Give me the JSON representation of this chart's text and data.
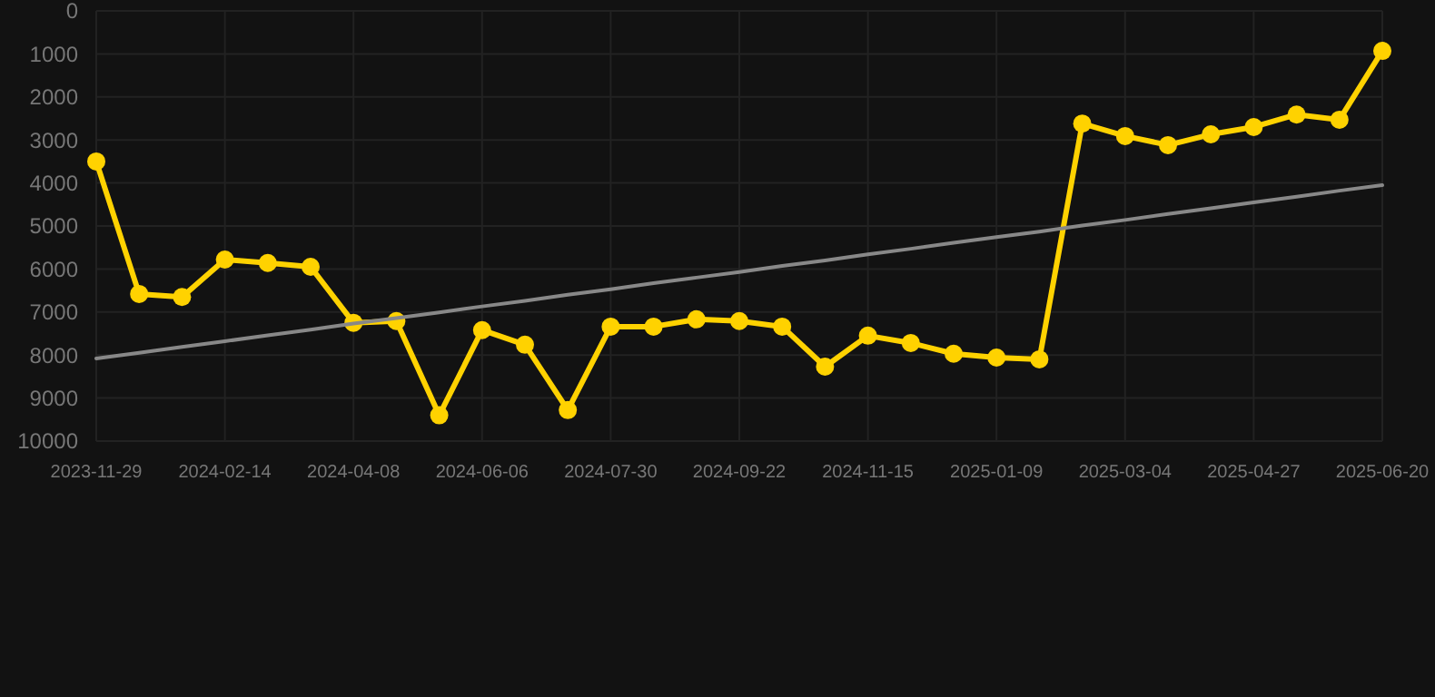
{
  "chart_data": {
    "type": "line",
    "categories": [
      "2023-11-29",
      null,
      null,
      "2024-02-14",
      null,
      null,
      "2024-04-08",
      null,
      null,
      "2024-06-06",
      null,
      null,
      "2024-07-30",
      null,
      null,
      "2024-09-22",
      null,
      null,
      "2024-11-15",
      null,
      null,
      "2025-01-09",
      null,
      null,
      "2025-03-04",
      null,
      null,
      "2025-04-27",
      null,
      null,
      "2025-06-20"
    ],
    "ylim": [
      10000,
      0
    ],
    "yticks": [
      0,
      1000,
      2000,
      3000,
      4000,
      5000,
      6000,
      7000,
      8000,
      9000,
      10000
    ],
    "grid": true,
    "marker": "circle",
    "line_style": "solid",
    "series": [
      {
        "color": "#ffd200",
        "values": [
          3500,
          6580,
          6650,
          5780,
          5860,
          5950,
          7250,
          7210,
          9400,
          7420,
          7760,
          9280,
          7340,
          7340,
          7170,
          7210,
          7340,
          8270,
          7550,
          7720,
          7970,
          8060,
          8100,
          2620,
          2910,
          3120,
          2870,
          2700,
          2410,
          2530,
          930
        ]
      },
      {
        "type": "line",
        "color": "#888888",
        "marker": "none",
        "values": [
          8080,
          7950,
          7810,
          7680,
          7540,
          7410,
          7270,
          7140,
          7010,
          6870,
          6740,
          6600,
          6470,
          6330,
          6200,
          6070,
          5930,
          5800,
          5660,
          5530,
          5390,
          5260,
          5130,
          4990,
          4860,
          4720,
          4590,
          4450,
          4320,
          4180,
          4050
        ]
      }
    ]
  }
}
